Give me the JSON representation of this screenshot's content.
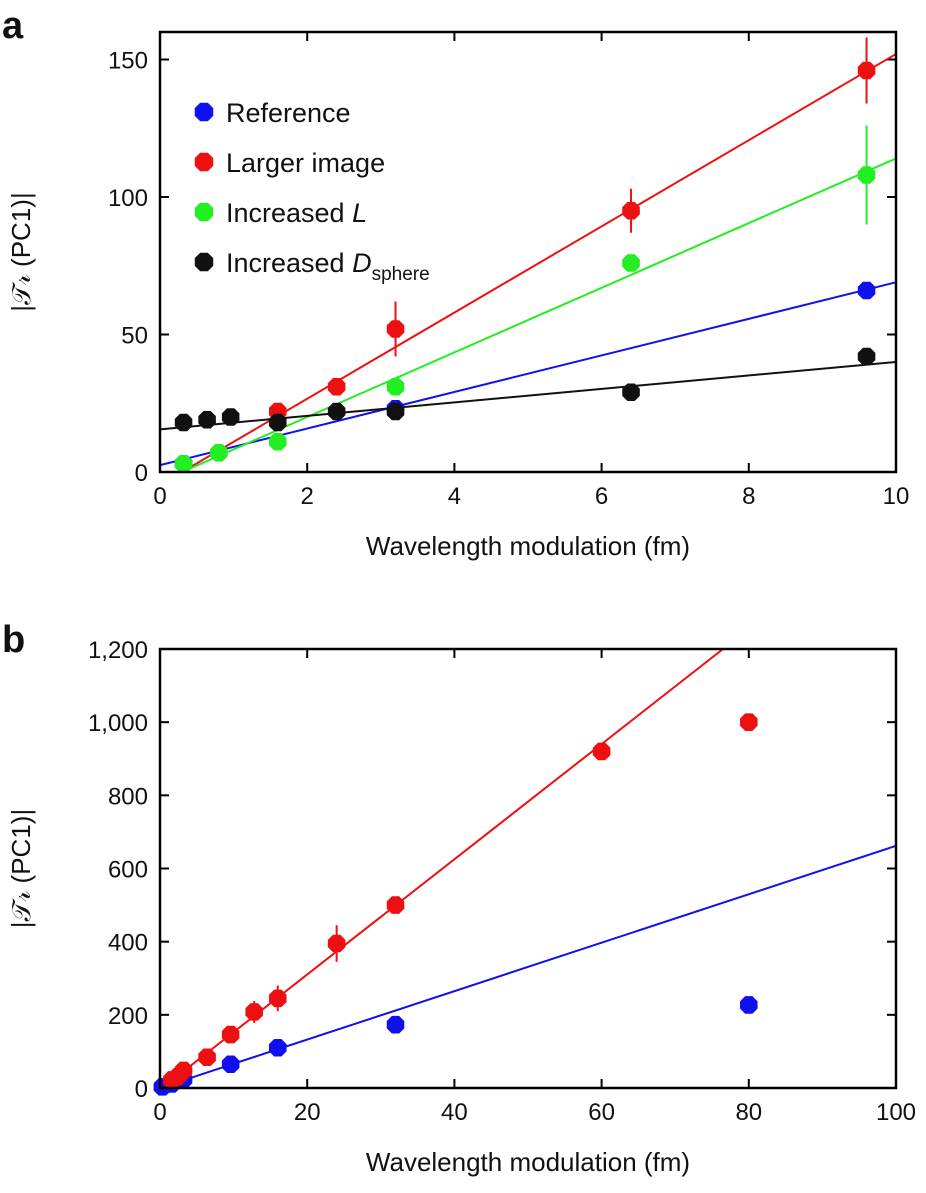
{
  "chart_data": [
    {
      "panel": "a",
      "type": "scatter",
      "xlabel": "Wavelength modulation (fm)",
      "ylabel": "|𝒯𝓇 (PC1)|",
      "xlim": [
        0,
        10
      ],
      "ylim": [
        0,
        160
      ],
      "xticks": [
        0,
        2,
        4,
        6,
        8,
        10
      ],
      "yticks": [
        0,
        50,
        100,
        150
      ],
      "legend_position": "top-left",
      "series": [
        {
          "name": "Reference",
          "color": "#1010ee",
          "x": [
            0.32,
            3.2,
            9.6
          ],
          "y": [
            3,
            23,
            66
          ],
          "yerr": [
            0,
            0,
            0
          ],
          "fit": {
            "x": [
              0,
              10
            ],
            "y": [
              2.5,
              69
            ]
          }
        },
        {
          "name": "Larger image",
          "color": "#ee1010",
          "x": [
            1.6,
            2.4,
            3.2,
            6.4,
            9.6
          ],
          "y": [
            22,
            31,
            52,
            95,
            146
          ],
          "yerr": [
            0,
            0,
            10,
            8,
            12
          ],
          "fit": {
            "x": [
              0.3,
              10
            ],
            "y": [
              0,
              152
            ]
          }
        },
        {
          "name": "Increased L",
          "name_base": "Increased ",
          "name_italic": "L",
          "color": "#22ee22",
          "x": [
            0.32,
            0.8,
            1.6,
            3.2,
            6.4,
            9.6
          ],
          "y": [
            3,
            7,
            11,
            31,
            76,
            108
          ],
          "yerr": [
            0,
            0,
            0,
            0,
            0,
            18
          ],
          "fit": {
            "x": [
              0.3,
              10
            ],
            "y": [
              0,
              114
            ]
          }
        },
        {
          "name": "Increased Dsphere",
          "name_base": "Increased ",
          "name_italic": "D",
          "name_sub": "sphere",
          "color": "#111111",
          "x": [
            0.32,
            0.64,
            0.96,
            1.6,
            2.4,
            3.2,
            6.4,
            9.6
          ],
          "y": [
            18,
            19,
            20,
            18,
            22,
            22,
            29,
            42
          ],
          "yerr": [
            0,
            0,
            0,
            0,
            0,
            0,
            0,
            0
          ],
          "fit": {
            "x": [
              0,
              10
            ],
            "y": [
              15.5,
              40
            ]
          }
        }
      ]
    },
    {
      "panel": "b",
      "type": "scatter",
      "xlabel": "Wavelength modulation (fm)",
      "ylabel": "|𝒯𝓇 (PC1)|",
      "xlim": [
        0,
        100
      ],
      "ylim": [
        0,
        1200
      ],
      "xticks": [
        0,
        20,
        40,
        60,
        80,
        100
      ],
      "yticks": [
        0,
        200,
        400,
        600,
        800,
        1000,
        1200
      ],
      "ytick_labels": [
        "0",
        "200",
        "400",
        "600",
        "800",
        "1,000",
        "1,200"
      ],
      "series": [
        {
          "name": "Reference",
          "color": "#1010ee",
          "x": [
            0.32,
            1.6,
            3.2,
            9.6,
            16,
            32,
            80
          ],
          "y": [
            3,
            11,
            23,
            65,
            110,
            173,
            227
          ],
          "yerr": [
            0,
            0,
            0,
            0,
            0,
            0,
            0
          ],
          "fit": {
            "x": [
              0,
              100
            ],
            "y": [
              0,
              662
            ]
          }
        },
        {
          "name": "Larger image",
          "color": "#ee1010",
          "x": [
            1.6,
            2.4,
            3.2,
            6.4,
            9.6,
            12.8,
            16,
            24,
            32,
            60,
            80
          ],
          "y": [
            22,
            31,
            48,
            84,
            146,
            208,
            245,
            395,
            500,
            920,
            1000
          ],
          "yerr": [
            0,
            0,
            0,
            0,
            0,
            30,
            35,
            50,
            0,
            0,
            0
          ],
          "fit": {
            "x": [
              0.3,
              76.5
            ],
            "y": [
              0,
              1200
            ]
          }
        }
      ]
    }
  ]
}
